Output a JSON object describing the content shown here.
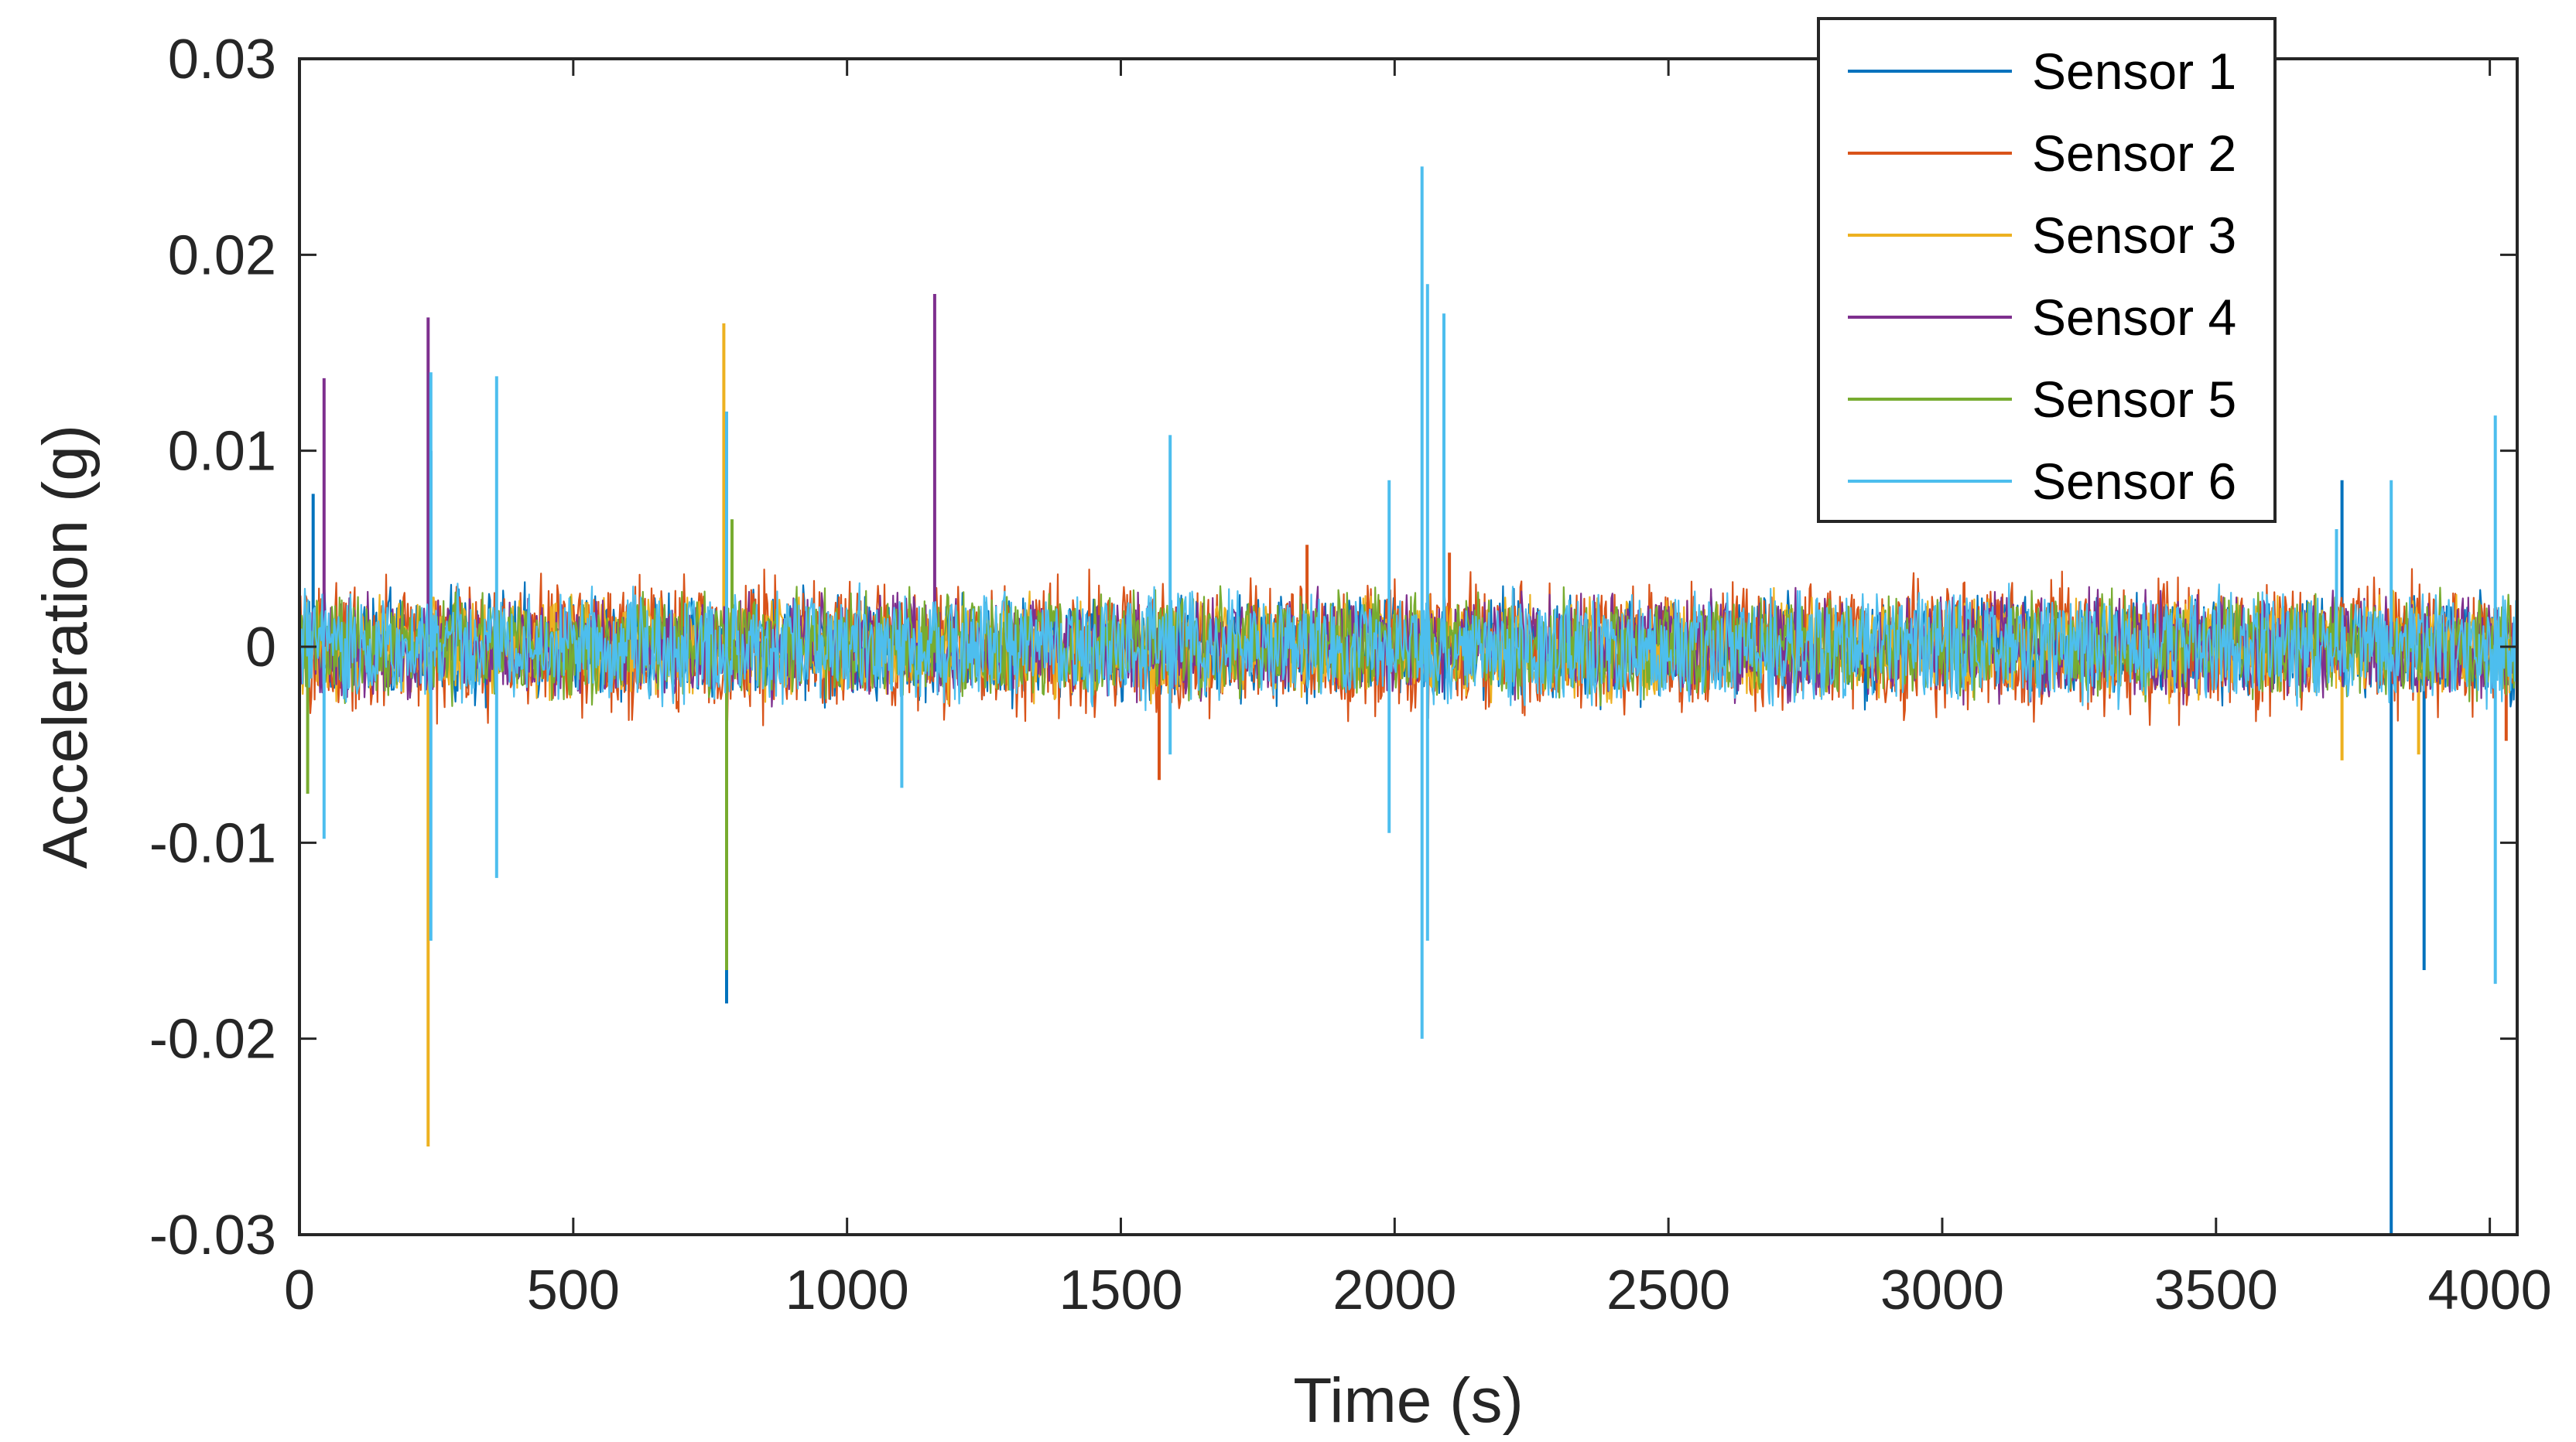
{
  "chart_data": {
    "type": "line",
    "title": "",
    "xlabel": "Time (s)",
    "ylabel": "Acceleration (g)",
    "xlim": [
      0,
      4050
    ],
    "ylim": [
      -0.03,
      0.03
    ],
    "xticks": [
      0,
      500,
      1000,
      1500,
      2000,
      2500,
      3000,
      3500,
      4000
    ],
    "xtick_labels": [
      "0",
      "500",
      "1000",
      "1500",
      "2000",
      "2500",
      "3000",
      "3500",
      "4000"
    ],
    "yticks": [
      0.03,
      0.02,
      0.01,
      0,
      -0.01,
      -0.02,
      -0.03
    ],
    "ytick_labels": [
      "0.03",
      "0.02",
      "0.01",
      "0",
      "-0.01",
      "-0.02",
      "-0.03"
    ],
    "grid": false,
    "legend_position": "top-right",
    "series": [
      {
        "name": "Sensor 1",
        "color": "#0072BD",
        "noise_amplitude": 0.003,
        "spikes": [
          [
            25,
            0.0078
          ],
          [
            240,
            0.01
          ],
          [
            780,
            -0.0182
          ],
          [
            3820,
            -0.03
          ],
          [
            3880,
            -0.0165
          ],
          [
            3730,
            0.0085
          ]
        ]
      },
      {
        "name": "Sensor 2",
        "color": "#D95319",
        "noise_amplitude": 0.0038,
        "spikes": [
          [
            1570,
            -0.0068
          ],
          [
            1840,
            0.0052
          ],
          [
            2100,
            0.0048
          ],
          [
            4030,
            -0.0048
          ]
        ]
      },
      {
        "name": "Sensor 3",
        "color": "#EDB120",
        "noise_amplitude": 0.0028,
        "spikes": [
          [
            235,
            -0.0255
          ],
          [
            775,
            0.0165
          ],
          [
            3730,
            -0.0058
          ],
          [
            3870,
            -0.0055
          ]
        ]
      },
      {
        "name": "Sensor 4",
        "color": "#7E2F8E",
        "noise_amplitude": 0.0029,
        "spikes": [
          [
            45,
            0.0137
          ],
          [
            235,
            0.0168
          ],
          [
            1160,
            0.018
          ]
        ]
      },
      {
        "name": "Sensor 5",
        "color": "#77AC30",
        "noise_amplitude": 0.0029,
        "spikes": [
          [
            15,
            -0.0075
          ],
          [
            780,
            -0.0165
          ],
          [
            790,
            0.0065
          ]
        ]
      },
      {
        "name": "Sensor 6",
        "color": "#4DBEEE",
        "noise_amplitude": 0.0031,
        "spikes": [
          [
            45,
            -0.0098
          ],
          [
            240,
            0.014
          ],
          [
            240,
            -0.015
          ],
          [
            360,
            0.0138
          ],
          [
            360,
            -0.0118
          ],
          [
            780,
            0.012
          ],
          [
            1100,
            -0.0072
          ],
          [
            1590,
            0.0108
          ],
          [
            1590,
            -0.0055
          ],
          [
            1990,
            0.0085
          ],
          [
            1990,
            -0.0095
          ],
          [
            2050,
            0.0245
          ],
          [
            2050,
            -0.02
          ],
          [
            2060,
            0.0185
          ],
          [
            2060,
            -0.015
          ],
          [
            2090,
            0.017
          ],
          [
            3720,
            0.006
          ],
          [
            3820,
            0.0085
          ],
          [
            4010,
            0.0118
          ],
          [
            4010,
            -0.0172
          ]
        ]
      }
    ]
  }
}
